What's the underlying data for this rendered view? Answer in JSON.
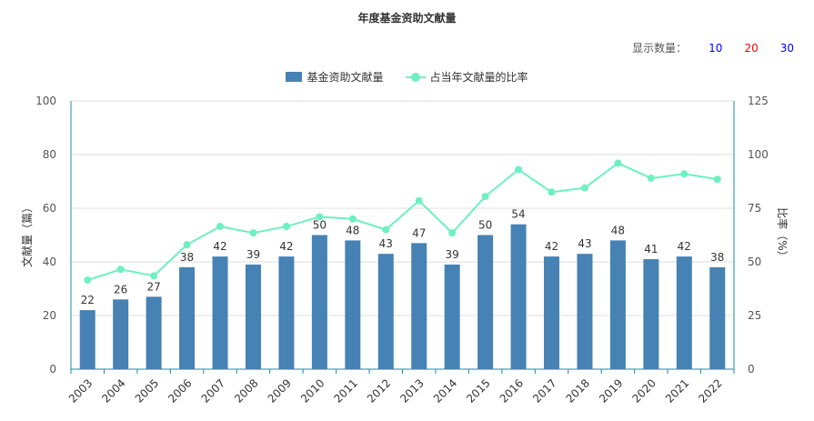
{
  "title": "年度基金资助文献量",
  "controls": {
    "label": "显示数量：",
    "options": [
      {
        "label": "10",
        "color": "#0000ff"
      },
      {
        "label": "20",
        "color": "#ff0000"
      },
      {
        "label": "30",
        "color": "#0000ff"
      }
    ]
  },
  "colors": {
    "bar": "#4682b4",
    "line": "#6ef0c0",
    "axis": "#1a8c9c",
    "grid": "#dddddd"
  },
  "chart_data": {
    "type": "bar",
    "title": "年度基金资助文献量",
    "categories": [
      "2003",
      "2004",
      "2005",
      "2006",
      "2007",
      "2008",
      "2009",
      "2010",
      "2011",
      "2012",
      "2013",
      "2014",
      "2015",
      "2016",
      "2017",
      "2018",
      "2019",
      "2020",
      "2021",
      "2022"
    ],
    "series": [
      {
        "name": "基金资助文献量",
        "type": "bar",
        "axis": "left",
        "values": [
          22,
          26,
          27,
          38,
          42,
          39,
          42,
          50,
          48,
          43,
          47,
          39,
          50,
          54,
          42,
          43,
          48,
          41,
          42,
          38
        ]
      },
      {
        "name": "占当年文献量的比率",
        "type": "line",
        "axis": "right",
        "values": [
          41.5,
          46.5,
          43.5,
          58,
          66.5,
          63.5,
          66.5,
          71,
          70,
          65,
          78.5,
          63.5,
          80.5,
          93,
          82.5,
          84.5,
          96,
          89,
          91,
          88.5
        ]
      }
    ],
    "ylabel": "文献量（篇）",
    "y2label": "比率（%）",
    "ylim": [
      0,
      100
    ],
    "y2lim": [
      0,
      125
    ],
    "yticks": [
      0,
      20,
      40,
      60,
      80,
      100
    ],
    "y2ticks": [
      0,
      25,
      50,
      75,
      100,
      125
    ],
    "grid": true,
    "legend": "top-center"
  }
}
